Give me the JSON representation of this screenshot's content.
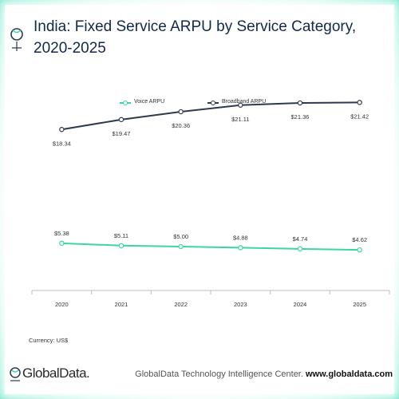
{
  "title": "India: Fixed Service ARPU by Service Category, 2020-2025",
  "currency_note": "Currency: US$",
  "logo_text": "GlobalData.",
  "footer": {
    "center": "GlobalData Technology Intelligence Center.",
    "site": "www.globaldata.com"
  },
  "colors": {
    "voice": "#3ad6a8",
    "broadband": "#2d3a4f",
    "title": "#13294b",
    "frame": "#5fe8c4"
  },
  "chart_data": {
    "type": "line",
    "categories": [
      "2020",
      "2021",
      "2022",
      "2023",
      "2024",
      "2025"
    ],
    "series": [
      {
        "name": "Voice ARPU",
        "values": [
          5.38,
          5.11,
          5.0,
          4.88,
          4.74,
          4.62
        ],
        "labels": [
          "$5.38",
          "$5.11",
          "$5.00",
          "$4.88",
          "$4.74",
          "$4.62"
        ],
        "label_position": "above"
      },
      {
        "name": "Broadband ARPU",
        "values": [
          18.34,
          19.47,
          20.36,
          21.11,
          21.36,
          21.42
        ],
        "labels": [
          "$18.34",
          "$19.47",
          "$20.36",
          "$21.11",
          "$21.36",
          "$21.42"
        ],
        "label_position": "below"
      }
    ],
    "ylim": [
      0,
      24
    ],
    "grid": false,
    "legend": "top-center",
    "xlabel": "",
    "ylabel": ""
  }
}
